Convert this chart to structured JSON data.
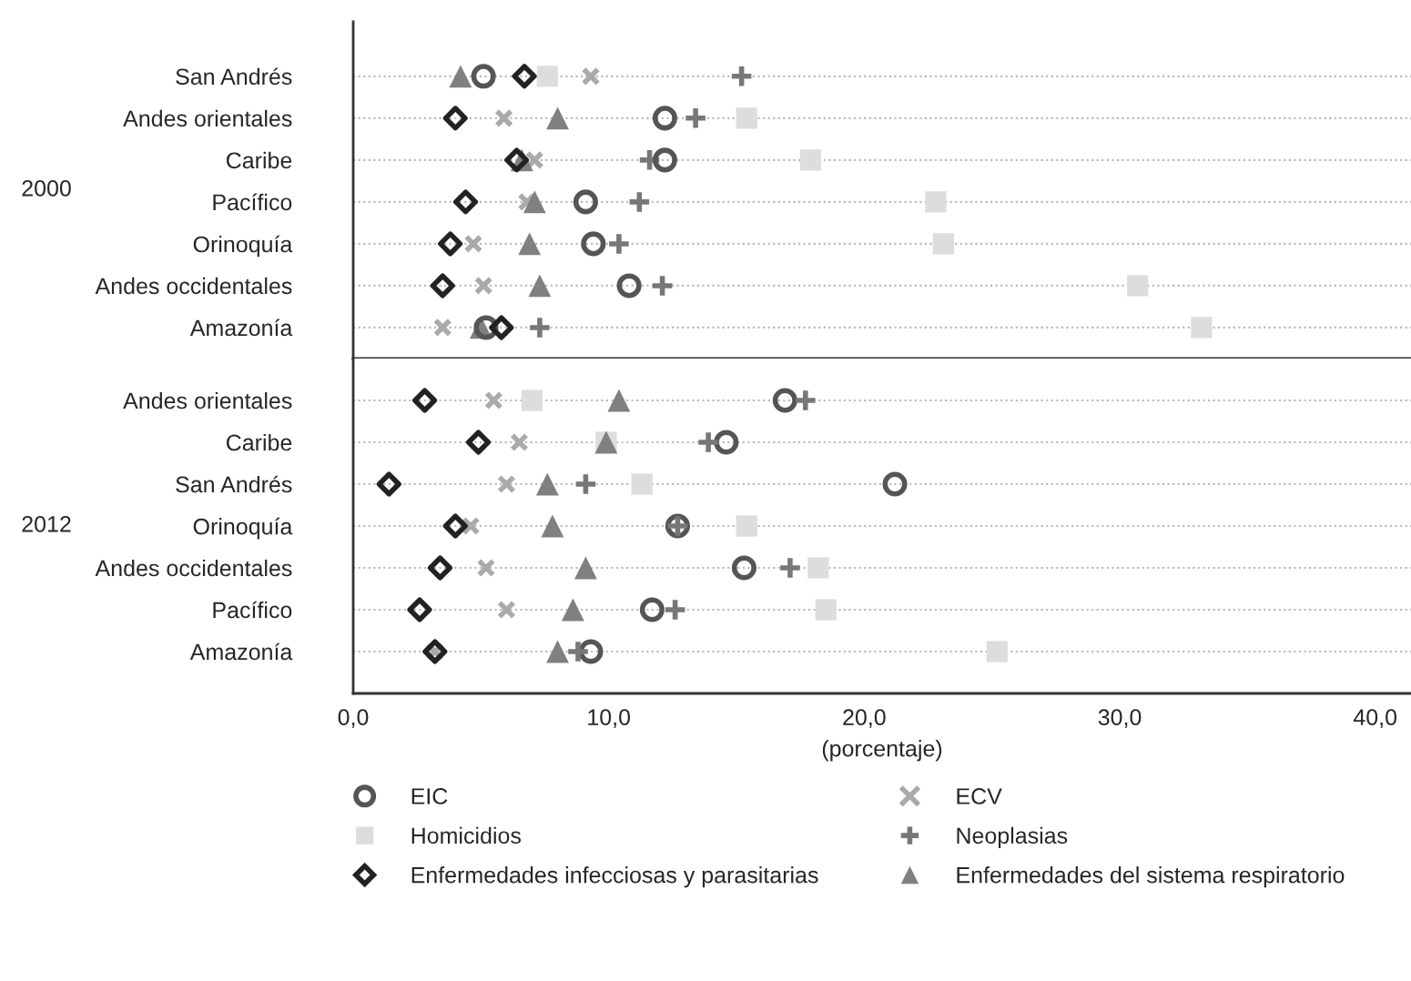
{
  "chart_data": [
    {
      "type": "scatter",
      "ylabel": "2000",
      "categories": [
        "San Andrés",
        "Andes orientales",
        "Caribe",
        "Pacífico",
        "Orinoquía",
        "Andes occidentales",
        "Amazonía"
      ],
      "xlim": [
        0,
        41.4
      ],
      "tick_labels": "y",
      "grid": "y",
      "legend": false,
      "orientation": "horizontal",
      "series": [
        {
          "color": "#dddddd",
          "marker": "square",
          "values": [
            7.6,
            15.4,
            17.9,
            22.8,
            23.1,
            30.7,
            33.2
          ]
        },
        {
          "color": "#aaaaaa",
          "marker": "x",
          "values": [
            9.3,
            5.9,
            7.1,
            6.8,
            4.7,
            5.1,
            3.5
          ]
        },
        {
          "color": "#777777",
          "marker": "cross",
          "values": [
            15.2,
            13.4,
            11.6,
            11.2,
            10.4,
            12.1,
            7.3
          ]
        },
        {
          "color": "#808080",
          "marker": "triangle",
          "values": [
            4.2,
            8.0,
            6.6,
            7.1,
            6.9,
            7.3,
            5.0
          ]
        },
        {
          "color": "#555555",
          "marker": "circle",
          "values": [
            5.1,
            12.2,
            12.2,
            9.1,
            9.4,
            10.8,
            5.2
          ]
        },
        {
          "color": "#222222",
          "marker": "diamond",
          "values": [
            6.7,
            4.0,
            6.4,
            4.4,
            3.8,
            3.5,
            5.8
          ]
        }
      ]
    },
    {
      "type": "scatter",
      "ylabel": "2012",
      "xlabel": "(porcentaje)",
      "categories": [
        "Andes orientales",
        "Caribe",
        "San Andrés",
        "Orinoquía",
        "Andes occidentales",
        "Pacífico",
        "Amazonía"
      ],
      "xlim": [
        0,
        41.4
      ],
      "xticks": [
        {
          "value": 0,
          "label": "0,0"
        },
        {
          "value": 10,
          "label": "10,0"
        },
        {
          "value": 20,
          "label": "20,0"
        },
        {
          "value": 30,
          "label": "30,0"
        },
        {
          "value": 40,
          "label": "40,0"
        }
      ],
      "grid": "y",
      "legend": "bottom",
      "orientation": "horizontal",
      "series": [
        {
          "name": "EIC",
          "color": "#555555",
          "marker": "circle",
          "values": [
            16.9,
            14.6,
            21.2,
            12.7,
            15.3,
            11.7,
            9.3
          ]
        },
        {
          "name": "ECV",
          "color": "#aaaaaa",
          "marker": "x",
          "values": [
            5.5,
            6.5,
            6.0,
            4.6,
            5.2,
            6.0,
            3.2
          ]
        },
        {
          "name": "Homicidios",
          "color": "#dddddd",
          "marker": "square",
          "values": [
            7.0,
            9.9,
            11.3,
            15.4,
            18.2,
            18.5,
            25.2
          ]
        },
        {
          "name": "Neoplasias",
          "color": "#777777",
          "marker": "cross",
          "values": [
            17.7,
            13.9,
            9.1,
            12.7,
            17.1,
            12.6,
            8.8
          ]
        },
        {
          "name": "Enfermedades infecciosas y parasitarias",
          "color": "#222222",
          "marker": "diamond",
          "values": [
            2.8,
            4.9,
            1.4,
            4.0,
            3.4,
            2.6,
            3.2
          ]
        },
        {
          "name": "Enfermedades del sistema respiratorio",
          "color": "#808080",
          "marker": "triangle",
          "values": [
            10.4,
            9.9,
            7.6,
            7.8,
            9.1,
            8.6,
            8.0
          ]
        }
      ]
    }
  ]
}
